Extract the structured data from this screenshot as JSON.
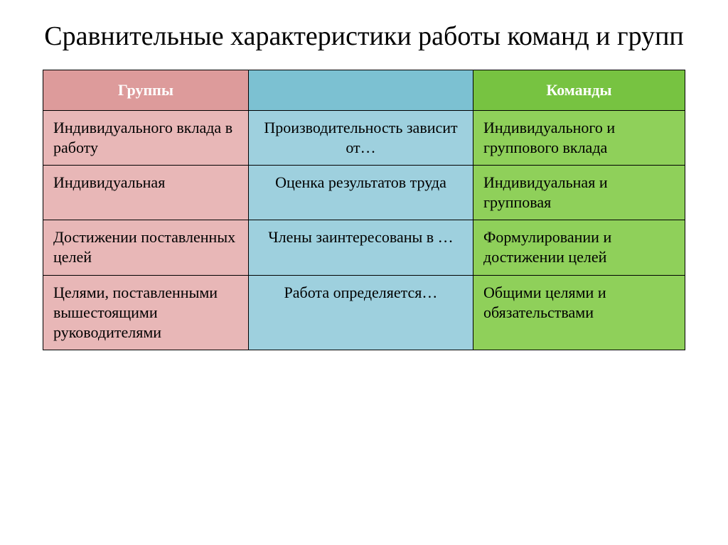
{
  "title": "Сравнительные характеристики работы команд и групп",
  "colors": {
    "left_header": "#dd9b9b",
    "left_body": "#e8b7b7",
    "mid_header": "#7cc1d2",
    "mid_body": "#9ed0de",
    "right_header": "#77c341",
    "right_body": "#8fd05a",
    "border": "#000000",
    "text": "#000000",
    "header_text": "#ffffff",
    "background": "#ffffff"
  },
  "typography": {
    "title_fontsize_pt": 29,
    "cell_fontsize_pt": 17,
    "font_family": "Times New Roman"
  },
  "table": {
    "columns": [
      {
        "key": "groups",
        "label": "Группы",
        "width_pct": 32
      },
      {
        "key": "criteria",
        "label": "",
        "width_pct": 35
      },
      {
        "key": "teams",
        "label": "Команды",
        "width_pct": 33
      }
    ],
    "rows": [
      {
        "groups": "Индивидуального вклада в работу",
        "criteria": "Производительность зависит от…",
        "teams": "Индивидуального и группового вклада"
      },
      {
        "groups": "Индивидуальная",
        "criteria": "Оценка результатов труда",
        "teams": "Индивидуальная и групповая"
      },
      {
        "groups": "Достижении поставленных целей",
        "criteria": "Члены заинтересованы в …",
        "teams": "Формулировании и достижении целей"
      },
      {
        "groups": "Целями, поставленными вышестоящими руководителями",
        "criteria": "Работа определяется…",
        "teams": "Общими целями и обязательствами"
      }
    ]
  }
}
